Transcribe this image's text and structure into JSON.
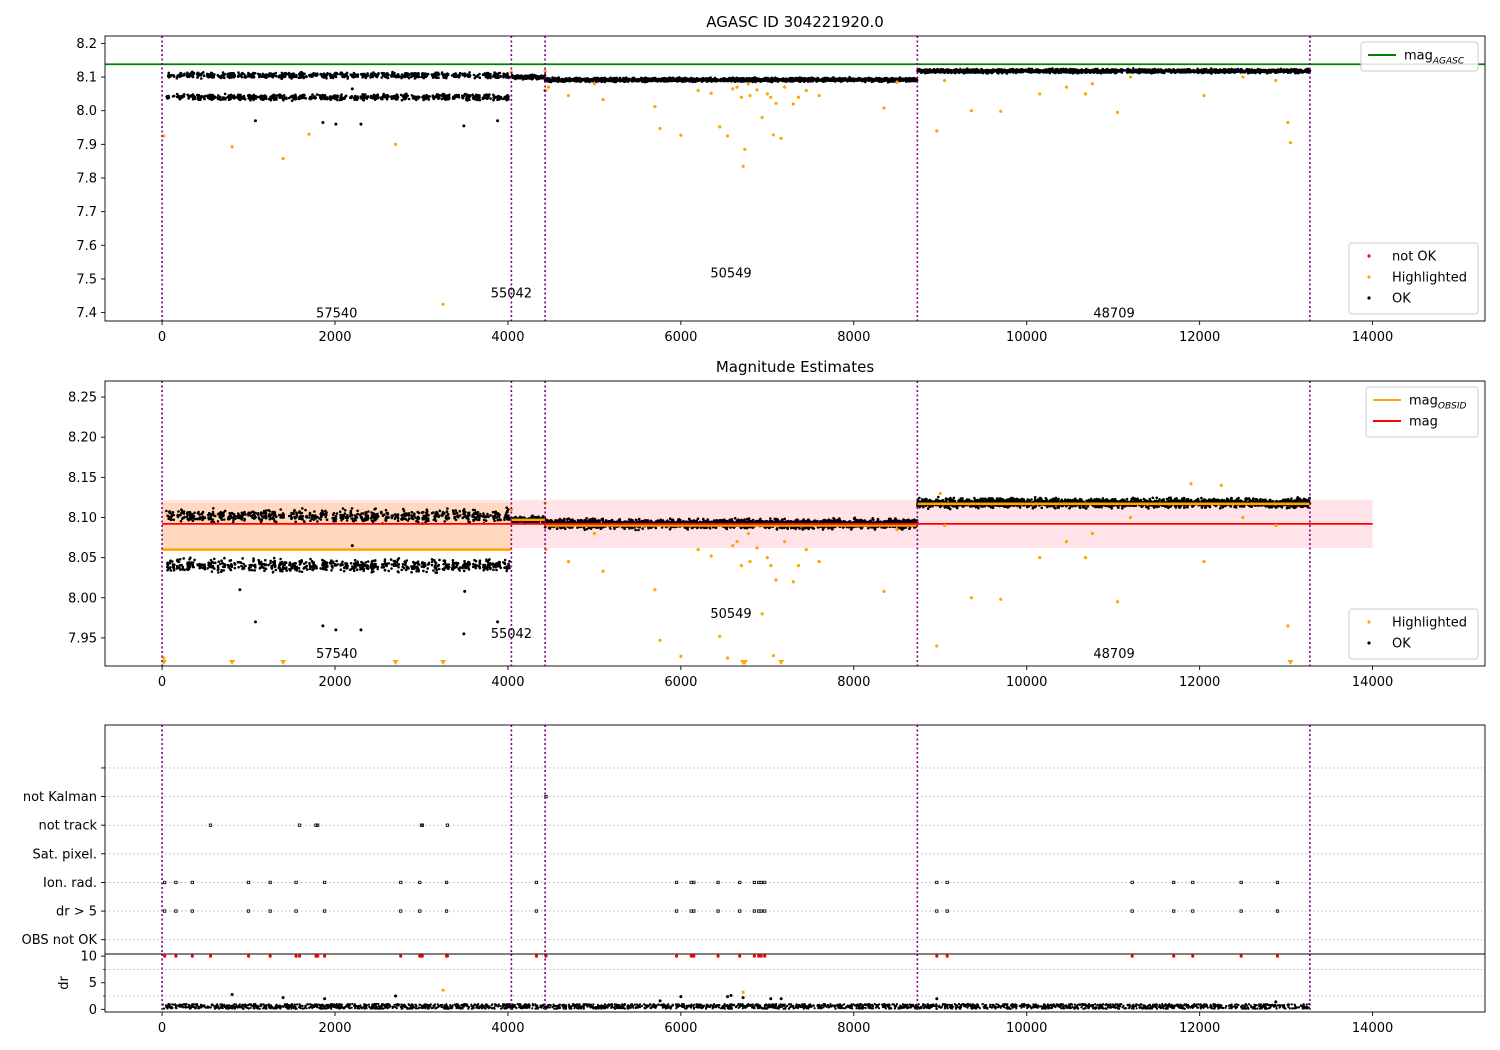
{
  "colors": {
    "ok": "#000000",
    "highlighted": "#ffa500",
    "not_ok": "#ff0000",
    "obs_boundary": "#800080",
    "mag_agasc": "#008000",
    "mag_obsid": "#ffa500",
    "mag": "#ff0000",
    "band": "#ffc0cb",
    "grid": "#b0b0b0"
  },
  "chart_data": [
    {
      "type": "scatter",
      "title": "AGASC ID 304221920.0",
      "xlabel": "",
      "ylabel": "",
      "xlim": [
        -660,
        15300
      ],
      "ylim": [
        7.375,
        8.222
      ],
      "x_ticks": [
        0,
        2000,
        4000,
        6000,
        8000,
        10000,
        12000,
        14000
      ],
      "x_tick_labels": [
        "0",
        "2000",
        "4000",
        "6000",
        "8000",
        "10000",
        "12000",
        "14000"
      ],
      "y_ticks": [
        7.4,
        7.5,
        7.6,
        7.7,
        7.8,
        7.9,
        8.0,
        8.1,
        8.2
      ],
      "y_tick_labels": [
        "7.4",
        "7.5",
        "7.6",
        "7.7",
        "7.8",
        "7.9",
        "8.0",
        "8.1",
        "8.2"
      ],
      "obs_boundaries": [
        0,
        4040,
        4430,
        8735,
        13275
      ],
      "obsid_labels": [
        {
          "text": "57540",
          "x": 2020,
          "y": 7.385
        },
        {
          "text": "55042",
          "x": 4040,
          "y": 7.445
        },
        {
          "text": "50549",
          "x": 6580,
          "y": 7.505
        },
        {
          "text": "48709",
          "x": 11010,
          "y": 7.385
        }
      ],
      "hlines": [
        {
          "series": "mag_agasc",
          "y": 8.138,
          "x_from": -660,
          "x_to": 15300
        }
      ],
      "legends": [
        {
          "position": "top-right",
          "entries": [
            {
              "kind": "line",
              "label": "mag",
              "sub": "AGASC",
              "color": "mag_agasc"
            }
          ]
        },
        {
          "position": "bottom-right",
          "entries": [
            {
              "kind": "point",
              "label": "not OK",
              "color": "not_ok"
            },
            {
              "kind": "point",
              "label": "Highlighted",
              "color": "highlighted"
            },
            {
              "kind": "point",
              "label": "OK",
              "color": "ok"
            }
          ]
        }
      ],
      "ok_segments": [
        {
          "x_from": 50,
          "x_to": 4020,
          "levels": [
            8.105,
            8.04
          ],
          "spread": 0.012,
          "pattern": "striped"
        },
        {
          "x_from": 4040,
          "x_to": 4430,
          "levels": [
            8.1
          ],
          "spread": 0.008,
          "pattern": "solid"
        },
        {
          "x_from": 4430,
          "x_to": 8735,
          "levels": [
            8.092
          ],
          "spread": 0.008,
          "pattern": "solid"
        },
        {
          "x_from": 8735,
          "x_to": 13275,
          "levels": [
            8.118
          ],
          "spread": 0.008,
          "pattern": "solid"
        }
      ],
      "ok_outliers": [
        [
          1080,
          7.97
        ],
        [
          1860,
          7.965
        ],
        [
          2010,
          7.96
        ],
        [
          2300,
          7.96
        ],
        [
          3490,
          7.955
        ],
        [
          3880,
          7.97
        ],
        [
          2200,
          8.065
        ],
        [
          4430,
          8.06
        ]
      ],
      "highlighted_points": [
        [
          20,
          7.925
        ],
        [
          810,
          7.893
        ],
        [
          1400,
          7.858
        ],
        [
          1700,
          7.93
        ],
        [
          2700,
          7.9
        ],
        [
          3250,
          7.425
        ],
        [
          4040,
          8.115
        ],
        [
          4430,
          8.118
        ],
        [
          4440,
          8.06
        ],
        [
          4470,
          8.07
        ],
        [
          4700,
          8.045
        ],
        [
          5000,
          8.08
        ],
        [
          5100,
          8.033
        ],
        [
          5700,
          8.012
        ],
        [
          5760,
          7.947
        ],
        [
          6000,
          7.927
        ],
        [
          6200,
          8.06
        ],
        [
          6350,
          8.052
        ],
        [
          6450,
          7.952
        ],
        [
          6540,
          7.925
        ],
        [
          6600,
          8.065
        ],
        [
          6650,
          8.07
        ],
        [
          6700,
          8.04
        ],
        [
          6720,
          7.835
        ],
        [
          6740,
          7.885
        ],
        [
          6780,
          8.08
        ],
        [
          6800,
          8.045
        ],
        [
          6880,
          8.062
        ],
        [
          6940,
          7.98
        ],
        [
          7000,
          8.05
        ],
        [
          7040,
          8.04
        ],
        [
          7070,
          7.928
        ],
        [
          7100,
          8.022
        ],
        [
          7160,
          7.918
        ],
        [
          7200,
          8.07
        ],
        [
          7300,
          8.02
        ],
        [
          7360,
          8.04
        ],
        [
          7450,
          8.06
        ],
        [
          7600,
          8.045
        ],
        [
          8350,
          8.008
        ],
        [
          8500,
          8.085
        ],
        [
          8960,
          7.94
        ],
        [
          9050,
          8.09
        ],
        [
          9360,
          8.0
        ],
        [
          9700,
          7.998
        ],
        [
          10150,
          8.05
        ],
        [
          10460,
          8.07
        ],
        [
          10680,
          8.05
        ],
        [
          10760,
          8.08
        ],
        [
          11050,
          7.995
        ],
        [
          12050,
          8.045
        ],
        [
          12880,
          8.09
        ],
        [
          13020,
          7.965
        ],
        [
          13050,
          7.905
        ],
        [
          11200,
          8.1
        ],
        [
          12500,
          8.1
        ]
      ],
      "not_ok_points": []
    },
    {
      "type": "scatter",
      "title": "Magnitude Estimates",
      "xlabel": "",
      "ylabel": "",
      "xlim": [
        -660,
        15300
      ],
      "ylim": [
        7.915,
        8.27
      ],
      "x_ticks": [
        0,
        2000,
        4000,
        6000,
        8000,
        10000,
        12000,
        14000
      ],
      "x_tick_labels": [
        "0",
        "2000",
        "4000",
        "6000",
        "8000",
        "10000",
        "12000",
        "14000"
      ],
      "y_ticks": [
        7.95,
        8.0,
        8.05,
        8.1,
        8.15,
        8.2,
        8.25
      ],
      "y_tick_labels": [
        "7.95",
        "8.00",
        "8.05",
        "8.10",
        "8.15",
        "8.20",
        "8.25"
      ],
      "obs_boundaries": [
        0,
        4040,
        4430,
        8735,
        13275
      ],
      "obsid_labels": [
        {
          "text": "57540",
          "x": 2020,
          "y": 7.925
        },
        {
          "text": "55042",
          "x": 4040,
          "y": 7.95
        },
        {
          "text": "50549",
          "x": 6580,
          "y": 7.975
        },
        {
          "text": "48709",
          "x": 11010,
          "y": 7.925
        }
      ],
      "bands": [
        {
          "x_from": 0,
          "x_to": 14000,
          "y_from": 8.062,
          "y_to": 8.122,
          "color": "band",
          "opacity": 0.45
        },
        {
          "x_from": 0,
          "x_to": 4040,
          "y_from": 8.06,
          "y_to": 8.118,
          "color": "mag_obsid",
          "opacity": 0.18
        }
      ],
      "steps": [
        {
          "x_from": 0,
          "x_to": 4040,
          "y": 8.06
        },
        {
          "x_from": 4040,
          "x_to": 4430,
          "y": 8.097
        },
        {
          "x_from": 4430,
          "x_to": 8735,
          "y": 8.09
        },
        {
          "x_from": 8735,
          "x_to": 13275,
          "y": 8.117
        }
      ],
      "hlines": [
        {
          "series": "mag",
          "y": 8.092,
          "x_from": 0,
          "x_to": 14000
        }
      ],
      "legends": [
        {
          "position": "top-right",
          "entries": [
            {
              "kind": "line",
              "label": "mag",
              "sub": "OBSID",
              "color": "mag_obsid"
            },
            {
              "kind": "line",
              "label": "mag",
              "sub": "",
              "color": "mag"
            }
          ]
        },
        {
          "position": "bottom-right",
          "entries": [
            {
              "kind": "point",
              "label": "Highlighted",
              "color": "highlighted"
            },
            {
              "kind": "point",
              "label": "OK",
              "color": "ok"
            }
          ]
        }
      ],
      "ok_segments": [
        {
          "x_from": 50,
          "x_to": 4020,
          "levels": [
            8.102,
            8.04
          ],
          "spread": 0.011,
          "pattern": "striped"
        },
        {
          "x_from": 4040,
          "x_to": 4430,
          "levels": [
            8.097
          ],
          "spread": 0.006,
          "pattern": "solid"
        },
        {
          "x_from": 4430,
          "x_to": 8735,
          "levels": [
            8.092
          ],
          "spread": 0.008,
          "pattern": "solid"
        },
        {
          "x_from": 8735,
          "x_to": 13275,
          "levels": [
            8.118
          ],
          "spread": 0.008,
          "pattern": "solid"
        }
      ],
      "ok_outliers": [
        [
          1080,
          7.97
        ],
        [
          1860,
          7.965
        ],
        [
          2010,
          7.96
        ],
        [
          2300,
          7.96
        ],
        [
          3490,
          7.955
        ],
        [
          3880,
          7.97
        ],
        [
          2200,
          8.065
        ],
        [
          900,
          8.01
        ],
        [
          3500,
          8.008
        ]
      ],
      "highlighted_points": [
        [
          20,
          7.925
        ],
        [
          4040,
          8.11
        ],
        [
          4430,
          8.118
        ],
        [
          4440,
          8.06
        ],
        [
          4700,
          8.045
        ],
        [
          5000,
          8.08
        ],
        [
          5100,
          8.033
        ],
        [
          5700,
          8.01
        ],
        [
          5760,
          7.947
        ],
        [
          6000,
          7.927
        ],
        [
          6200,
          8.06
        ],
        [
          6350,
          8.052
        ],
        [
          6450,
          7.952
        ],
        [
          6540,
          7.925
        ],
        [
          6600,
          8.065
        ],
        [
          6650,
          8.07
        ],
        [
          6700,
          8.04
        ],
        [
          6780,
          8.08
        ],
        [
          6800,
          8.045
        ],
        [
          6880,
          8.062
        ],
        [
          6940,
          7.98
        ],
        [
          7000,
          8.05
        ],
        [
          7040,
          8.04
        ],
        [
          7070,
          7.928
        ],
        [
          7100,
          8.022
        ],
        [
          7200,
          8.07
        ],
        [
          7300,
          8.02
        ],
        [
          7360,
          8.04
        ],
        [
          7450,
          8.06
        ],
        [
          7600,
          8.045
        ],
        [
          8350,
          8.008
        ],
        [
          8500,
          8.085
        ],
        [
          8960,
          7.94
        ],
        [
          9050,
          8.09
        ],
        [
          9360,
          8.0
        ],
        [
          9700,
          7.998
        ],
        [
          10150,
          8.05
        ],
        [
          10460,
          8.07
        ],
        [
          10680,
          8.05
        ],
        [
          10760,
          8.08
        ],
        [
          11050,
          7.995
        ],
        [
          12050,
          8.045
        ],
        [
          12880,
          8.09
        ],
        [
          13020,
          7.965
        ],
        [
          9000,
          8.13
        ],
        [
          11900,
          8.142
        ],
        [
          12250,
          8.14
        ],
        [
          11200,
          8.1
        ],
        [
          12500,
          8.1
        ]
      ],
      "clipped_markers": [
        20,
        810,
        1400,
        2700,
        3250,
        6720,
        6740,
        7160,
        13050
      ]
    },
    {
      "type": "scatter",
      "title": "",
      "xlabel": "",
      "ylabel": "",
      "xlim": [
        -660,
        15300
      ],
      "ylim": [
        -0.5,
        7.5
      ],
      "x_ticks": [],
      "x_tick_labels": [],
      "y_ticks": [
        0,
        1,
        2,
        3,
        4,
        5,
        6
      ],
      "y_tick_labels": [
        "OBS not OK",
        "dr > 5",
        "Ion. rad.",
        "Sat. pixel.",
        "not track",
        "not Kalman",
        ""
      ],
      "obs_boundaries": [
        0,
        4040,
        4430,
        8735,
        13275
      ],
      "flag_points": {
        "1": [
          30,
          160,
          350,
          1000,
          1250,
          1550,
          1880,
          2760,
          2980,
          3290,
          4330,
          5950,
          6120,
          6150,
          6430,
          6680,
          6850,
          6900,
          6930,
          6970,
          8960,
          9080,
          11220,
          11700,
          11920,
          12480,
          12900
        ],
        "2": [
          30,
          160,
          350,
          1000,
          1250,
          1550,
          1880,
          2760,
          2980,
          3290,
          4330,
          5950,
          6120,
          6150,
          6430,
          6680,
          6850,
          6900,
          6930,
          6970,
          8960,
          9080,
          11220,
          11700,
          11920,
          12480,
          12900
        ],
        "4": [
          560,
          1590,
          1780,
          1800,
          3000,
          3010,
          3300
        ],
        "5": [
          4440
        ]
      }
    },
    {
      "type": "scatter",
      "title": "",
      "xlabel": "",
      "ylabel": "dr",
      "xlim": [
        -660,
        15300
      ],
      "ylim": [
        -0.5,
        10.4
      ],
      "x_ticks": [
        0,
        2000,
        4000,
        6000,
        8000,
        10000,
        12000,
        14000
      ],
      "x_tick_labels": [
        "0",
        "2000",
        "4000",
        "6000",
        "8000",
        "10000",
        "12000",
        "14000"
      ],
      "y_ticks": [
        0,
        5,
        10
      ],
      "y_tick_labels": [
        "0",
        "5",
        "10"
      ],
      "obs_boundaries": [
        0,
        4040,
        4430,
        8735,
        13275
      ],
      "ok_band": {
        "x_from": 0,
        "x_to": 13275,
        "y_from": 0.1,
        "y_to": 1.0
      },
      "ok_outliers": [
        [
          810,
          2.8
        ],
        [
          1400,
          2.2
        ],
        [
          1880,
          2.0
        ],
        [
          2700,
          2.5
        ],
        [
          5760,
          1.6
        ],
        [
          6000,
          2.4
        ],
        [
          6540,
          2.4
        ],
        [
          6580,
          2.6
        ],
        [
          6720,
          2.2
        ],
        [
          7040,
          2.0
        ],
        [
          7160,
          2.0
        ],
        [
          8960,
          2.0
        ],
        [
          12880,
          1.4
        ]
      ],
      "highlighted_points": [
        [
          3250,
          3.6
        ],
        [
          6720,
          3.2
        ]
      ],
      "not_ok_points": [
        [
          30,
          10
        ],
        [
          160,
          10
        ],
        [
          350,
          10
        ],
        [
          560,
          10
        ],
        [
          1000,
          10
        ],
        [
          1250,
          10
        ],
        [
          1550,
          10
        ],
        [
          1590,
          10
        ],
        [
          1780,
          10
        ],
        [
          1800,
          10
        ],
        [
          1880,
          10
        ],
        [
          2760,
          10
        ],
        [
          2980,
          10
        ],
        [
          3000,
          10
        ],
        [
          3010,
          10
        ],
        [
          3290,
          10
        ],
        [
          3300,
          10
        ],
        [
          4330,
          10
        ],
        [
          4440,
          10
        ],
        [
          5950,
          10
        ],
        [
          6120,
          10
        ],
        [
          6150,
          10
        ],
        [
          6430,
          10
        ],
        [
          6680,
          10
        ],
        [
          6850,
          10
        ],
        [
          6900,
          10
        ],
        [
          6930,
          10
        ],
        [
          6970,
          10
        ],
        [
          8960,
          10
        ],
        [
          9080,
          10
        ],
        [
          11220,
          10
        ],
        [
          11700,
          10
        ],
        [
          11920,
          10
        ],
        [
          12480,
          10
        ],
        [
          12900,
          10
        ]
      ]
    }
  ]
}
